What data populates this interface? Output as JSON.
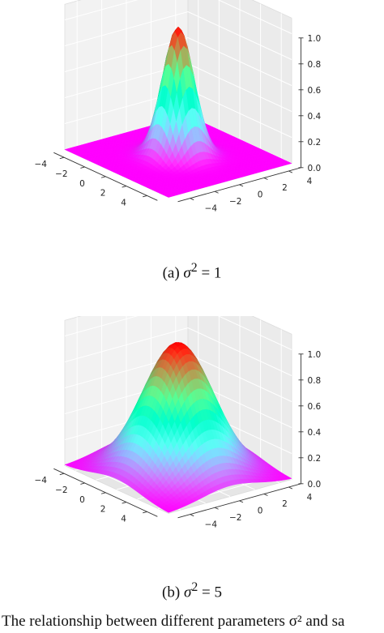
{
  "chart_data": [
    {
      "type": "surface3d",
      "function": "exp(-(x^2+y^2)/(2*sigma^2))",
      "sigma_squared": 1,
      "xlim": [
        -5,
        5
      ],
      "ylim": [
        -5,
        5
      ],
      "zlim": [
        0,
        1
      ],
      "xticks": [
        "−4",
        "−2",
        "0",
        "2",
        "4"
      ],
      "yticks": [
        "−4",
        "−2",
        "0",
        "2",
        "4"
      ],
      "zticks": [
        "0.0",
        "0.2",
        "0.4",
        "0.6",
        "0.8",
        "1.0"
      ],
      "grid": true,
      "colormap": "rainbow",
      "caption": {
        "label": "(a)",
        "var": "σ",
        "sup": "2",
        "rest": " = 1"
      }
    },
    {
      "type": "surface3d",
      "function": "exp(-(x^2+y^2)/(2*sigma^2))",
      "sigma_squared": 5,
      "xlim": [
        -5,
        5
      ],
      "ylim": [
        -5,
        5
      ],
      "zlim": [
        0,
        1
      ],
      "xticks": [
        "−4",
        "−2",
        "0",
        "2",
        "4"
      ],
      "yticks": [
        "−4",
        "−2",
        "0",
        "2",
        "4"
      ],
      "zticks": [
        "0.0",
        "0.2",
        "0.4",
        "0.6",
        "0.8",
        "1.0"
      ],
      "grid": true,
      "colormap": "rainbow",
      "caption": {
        "label": "(b)",
        "var": "σ",
        "sup": "2",
        "rest": " = 5"
      }
    }
  ],
  "figure_caption": "The relationship between different parameters σ² and sa"
}
